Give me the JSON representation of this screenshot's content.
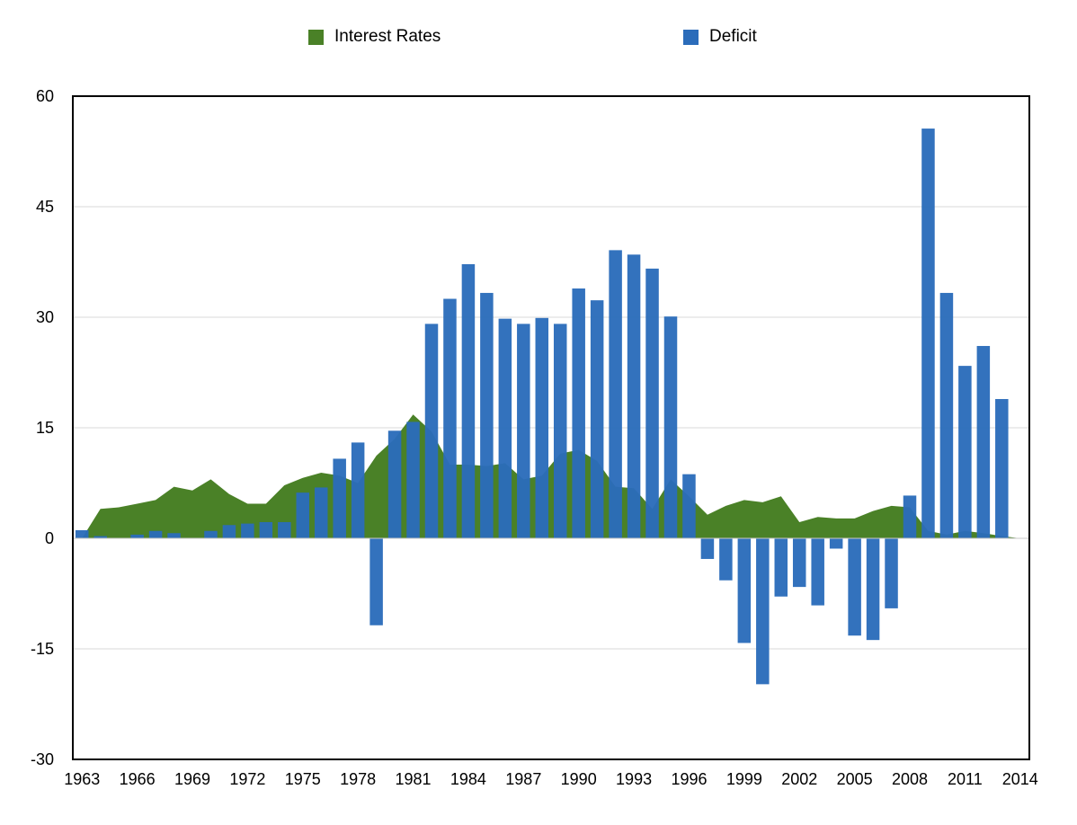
{
  "chart_data": {
    "type": "bar",
    "title": "",
    "xlabel": "",
    "ylabel": "",
    "ylim": [
      -30,
      60
    ],
    "yticks": [
      60,
      45,
      30,
      15,
      0,
      -15,
      -30
    ],
    "xticks": [
      "1963",
      "1966",
      "1969",
      "1972",
      "1975",
      "1978",
      "1981",
      "1984",
      "1987",
      "1990",
      "1993",
      "1996",
      "1999",
      "2002",
      "2005",
      "2008",
      "2011",
      "2014"
    ],
    "grid": true,
    "legend_position": "top",
    "x": [
      1963,
      1964,
      1965,
      1966,
      1967,
      1968,
      1969,
      1970,
      1971,
      1972,
      1973,
      1974,
      1975,
      1976,
      1977,
      1978,
      1979,
      1980,
      1981,
      1982,
      1983,
      1984,
      1985,
      1986,
      1987,
      1988,
      1989,
      1990,
      1991,
      1992,
      1993,
      1994,
      1995,
      1996,
      1997,
      1998,
      1999,
      2000,
      2001,
      2002,
      2003,
      2004,
      2005,
      2006,
      2007,
      2008,
      2009,
      2010,
      2011,
      2012,
      2013,
      2014
    ],
    "series": [
      {
        "name": "Interest Rates",
        "kind": "area",
        "color": "#4a8127",
        "values": [
          0,
          4,
          4.2,
          4.7,
          5.2,
          7,
          6.5,
          8,
          6,
          4.7,
          4.7,
          7.2,
          8.2,
          8.9,
          8.5,
          7.5,
          11.2,
          13.5,
          16.8,
          14.5,
          10,
          10,
          9.8,
          10.2,
          8,
          8.5,
          11.5,
          12,
          10.5,
          7,
          6.8,
          4,
          8,
          5.7,
          3.2,
          4.4,
          5.2,
          4.9,
          5.7,
          2.2,
          2.9,
          2.7,
          2.7,
          3.7,
          4.4,
          4.2,
          1,
          0.5,
          1,
          0.7,
          0.3,
          0
        ]
      },
      {
        "name": "Deficit",
        "kind": "bar",
        "color": "#2b6cba",
        "values": [
          1.1,
          0.3,
          null,
          0.5,
          1,
          0.7,
          null,
          1,
          1.8,
          2,
          2.2,
          2.2,
          6.2,
          6.9,
          10.8,
          13,
          -11.8,
          14.6,
          15.8,
          29.1,
          32.5,
          37.2,
          33.3,
          29.8,
          29.1,
          29.9,
          29.1,
          33.9,
          32.3,
          39.1,
          38.5,
          36.6,
          30.1,
          8.7,
          -2.8,
          -5.7,
          -14.2,
          -19.8,
          -7.9,
          -6.6,
          -9.1,
          -1.4,
          -13.2,
          -13.8,
          -9.5,
          5.8,
          55.6,
          33.3,
          23.4,
          26.1,
          18.9,
          null
        ]
      }
    ]
  }
}
